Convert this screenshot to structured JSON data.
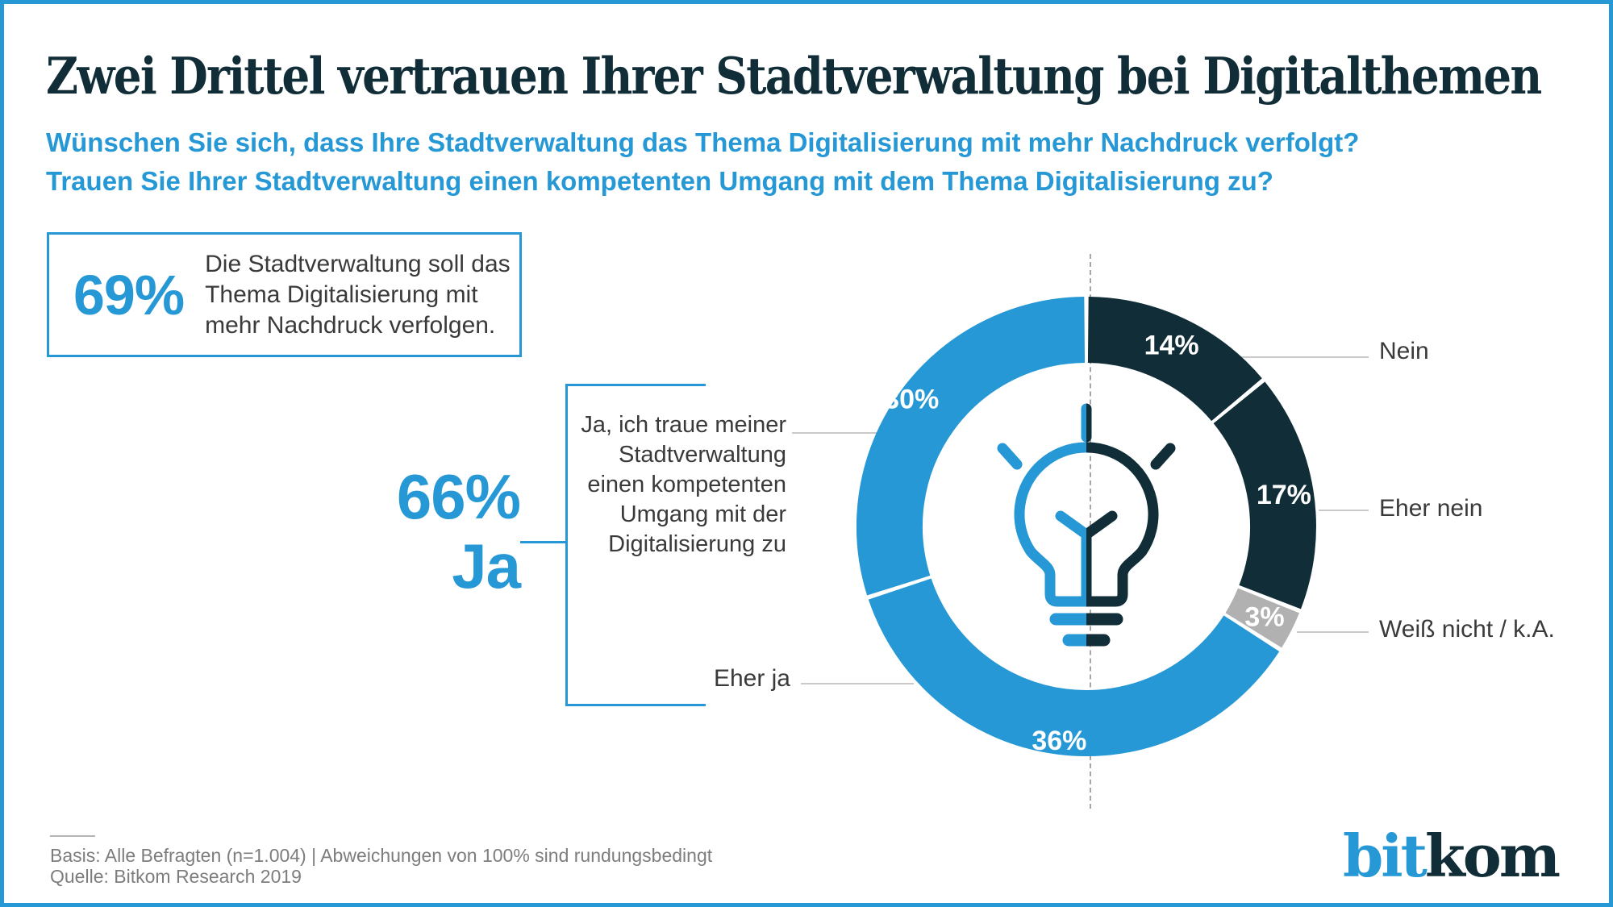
{
  "colors": {
    "blue": "#2598d5",
    "dark": "#112e38",
    "gray": "#b1b1b2",
    "label_text": "#3a3a3a",
    "leader": "#c9c9c9",
    "muted": "#7d7d7d",
    "dashed": "#a6a6a6",
    "white": "#ffffff"
  },
  "header": {
    "title": "Zwei Drittel vertrauen Ihrer Stadtverwaltung bei Digitalthemen",
    "subtitle_line1": "Wünschen Sie sich, dass Ihre Stadtverwaltung das Thema Digitalisierung mit mehr Nachdruck verfolgt?",
    "subtitle_line2": "Trauen Sie Ihrer Stadtverwaltung einen kompetenten Umgang mit dem Thema Digitalisierung zu?"
  },
  "stat_box": {
    "value": "69%",
    "text": "Die Stadtverwaltung soll das Thema Digitalisierung mit mehr Nachdruck verfolgen."
  },
  "ja_summary": {
    "value": "66%",
    "label": "Ja"
  },
  "callouts": {
    "ja_lines": [
      "Ja, ich traue meiner",
      "Stadtverwaltung",
      "einen kompetenten",
      "Umgang mit der",
      "Digitalisierung zu"
    ],
    "eher_ja": "Eher ja"
  },
  "chart_data": {
    "type": "pie",
    "donut": true,
    "start_angle_deg": 0,
    "clockwise": true,
    "unit": "%",
    "center_icon": "lightbulb-split",
    "legend_position": "callout-labels",
    "segments": [
      {
        "label": "Nein",
        "value": 14,
        "color": "dark",
        "label_radius": 248
      },
      {
        "label": "Eher nein",
        "value": 17,
        "color": "dark",
        "label_radius": 248
      },
      {
        "label": "Weiß nicht / k.A.",
        "value": 3,
        "color": "gray",
        "label_radius": 248
      },
      {
        "label": "Eher ja",
        "value": 36,
        "color": "blue",
        "label_radius": 268
      },
      {
        "label": "Ja",
        "value": 30,
        "color": "blue",
        "label_radius": 268
      }
    ],
    "groups": [
      {
        "label": "Ja",
        "value": 66,
        "includes": [
          "Ja",
          "Eher ja"
        ]
      }
    ]
  },
  "footer": {
    "basis": "Basis: Alle Befragten (n=1.004) | Abweichungen von 100% sind rundungsbedingt",
    "quelle": "Quelle: Bitkom Research 2019"
  },
  "logo": {
    "part1": "bit",
    "part2": "kom"
  }
}
